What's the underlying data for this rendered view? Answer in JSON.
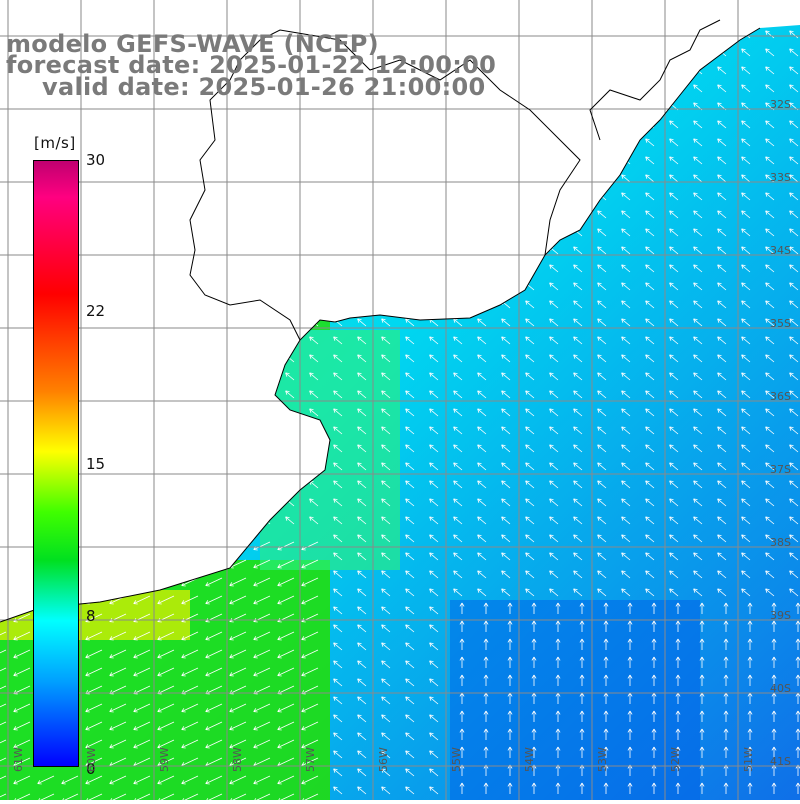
{
  "title": {
    "model": "modelo GEFS-WAVE (NCEP)",
    "forecast": "forecast date: 2025-01-22 12:00:00",
    "valid": "valid date: 2025-01-26 21:00:00"
  },
  "colorbar": {
    "unit": "[m/s]",
    "range": [
      0,
      30
    ],
    "tick_labels": [
      "30",
      "22",
      "15",
      "8",
      "0"
    ],
    "tick_values": [
      30,
      22,
      15,
      8,
      0
    ],
    "colors": [
      "#0000ff",
      "#00a0ff",
      "#00ffff",
      "#00ff40",
      "#20e000",
      "#ffff00",
      "#ff8000",
      "#ff0000",
      "#ff0080",
      "#c00070"
    ]
  },
  "grid": {
    "lat_labels": [
      "32S",
      "33S",
      "34S",
      "35S",
      "36S",
      "37S",
      "38S",
      "39S",
      "40S",
      "41S"
    ],
    "lon_labels": [
      "61W",
      "60W",
      "59W",
      "58W",
      "57W",
      "56W",
      "55W",
      "54W",
      "53W",
      "52W",
      "51W"
    ]
  },
  "land_color": "#ffffff",
  "coast_color": "#000000",
  "gridline_color": "#8a8a8a"
}
